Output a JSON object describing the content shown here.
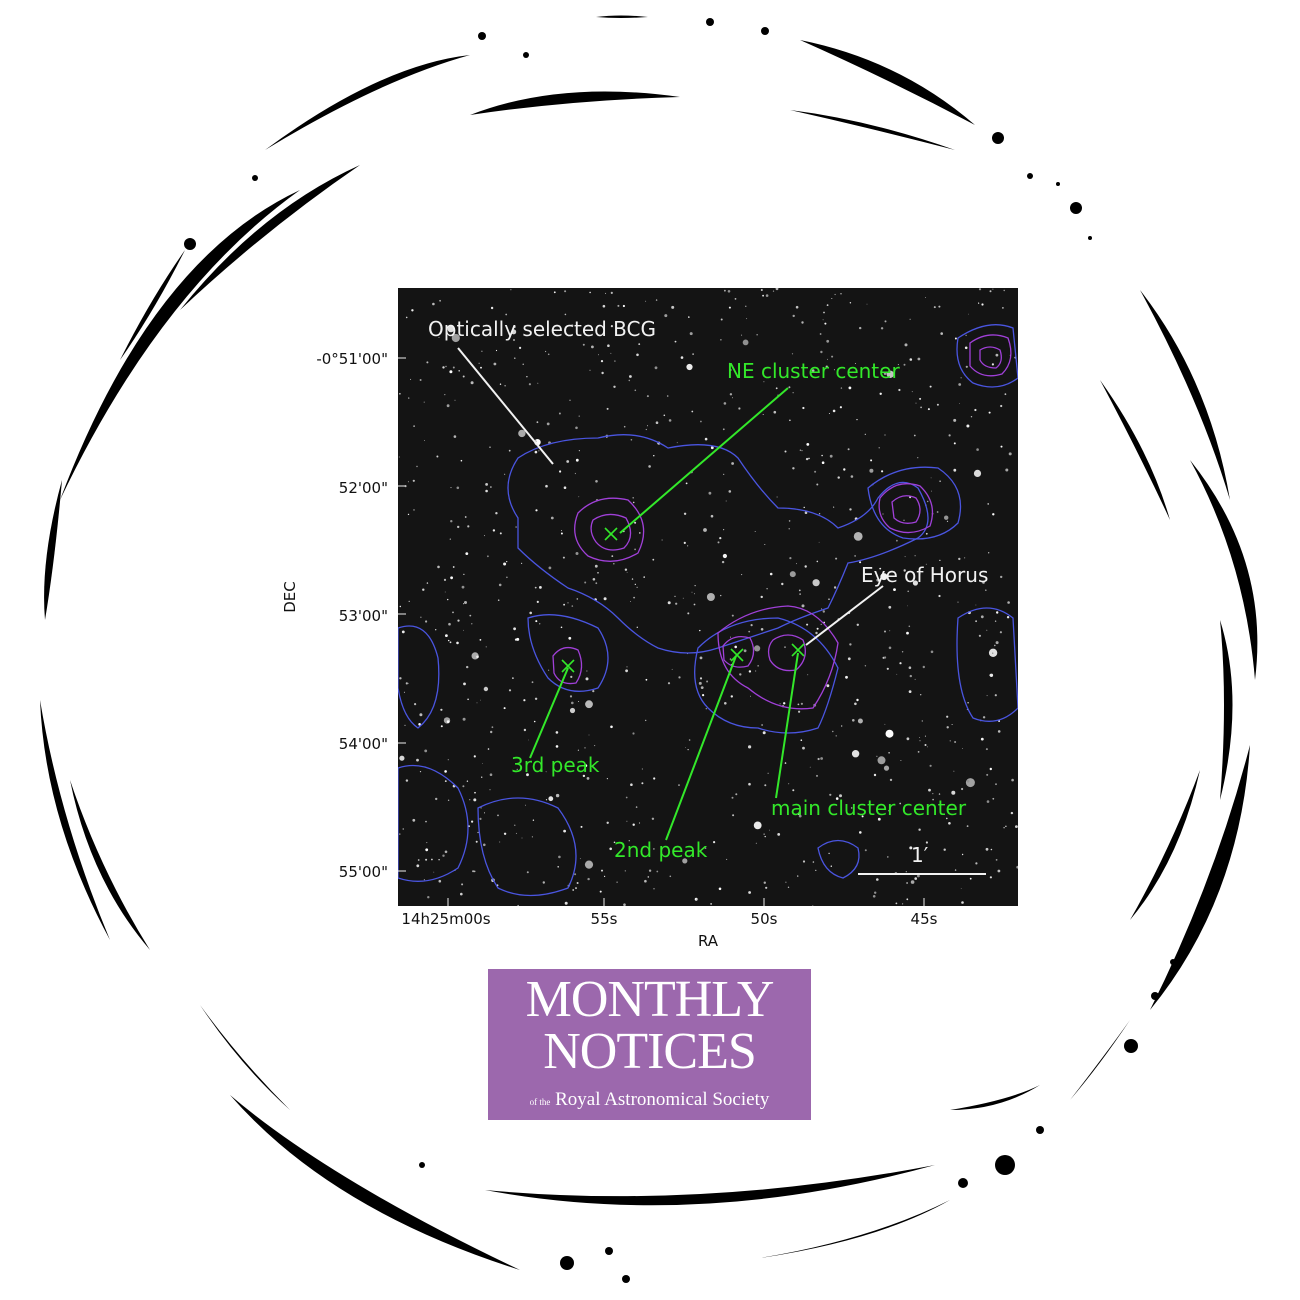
{
  "figure": {
    "xlabel": "RA",
    "ylabel": "DEC",
    "ra_ticks": [
      "14h25m00s",
      "55s",
      "50s",
      "45s"
    ],
    "dec_ticks": [
      "-0°51'00\"",
      "52'00\"",
      "53'00\"",
      "54'00\"",
      "55'00\""
    ],
    "scale_bar_label": "1′",
    "annotations": {
      "bcg": "Optically selected BCG",
      "ne_center": "NE cluster center",
      "eye": "Eye of Horus",
      "third": "3rd peak",
      "main_center": "main cluster center",
      "second": "2nd peak"
    },
    "colors": {
      "annotation_white": "#f2f2f2",
      "annotation_green": "#33e82a",
      "contour_outer": "#4a55e0",
      "contour_inner": "#a040d8"
    }
  },
  "journal_logo": {
    "line1": "MONTHLY",
    "line2": "NOTICES",
    "line3_prefix": "of the",
    "line3": "Royal Astronomical Society",
    "background": "#9c68ad"
  }
}
